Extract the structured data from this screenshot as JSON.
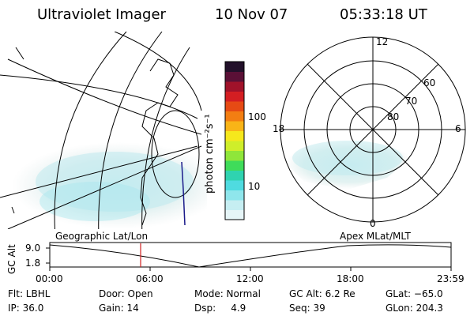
{
  "header": {
    "instrument": "Ultraviolet Imager",
    "date": "10 Nov 07",
    "time": "05:33:18 UT"
  },
  "colorbar": {
    "unit_label": "photon cm⁻²s⁻¹",
    "ticks": [
      "100",
      "10"
    ],
    "colors": [
      "#e6f5f7",
      "#c6eef2",
      "#8fe6ec",
      "#4fdbe0",
      "#2fd3b0",
      "#3fdc5a",
      "#8fe63a",
      "#cfee2a",
      "#f6e81c",
      "#f9b417",
      "#f37e12",
      "#e64a14",
      "#d41e22",
      "#a0122a",
      "#5a1036",
      "#22102a"
    ]
  },
  "polar": {
    "mlt_labels": [
      "12",
      "18",
      "6",
      "0"
    ],
    "lat_labels": [
      "60",
      "70",
      "80"
    ]
  },
  "panels": {
    "left_label": "Geographic Lat/Lon",
    "right_label": "Apex MLat/MLT"
  },
  "altplot": {
    "ylabel": "GC Alt",
    "yticks": [
      "9.0",
      "1.8"
    ],
    "xticks": [
      "00:00",
      "06:00",
      "12:00",
      "18:00",
      "23:59"
    ],
    "marker_color": "#d02020"
  },
  "info": {
    "filter": "Flt: LBHL",
    "door": "Door: Open",
    "mode": "Mode: Normal",
    "gc_alt": "GC Alt: 6.2 Re",
    "glat": "GLat: −65.0",
    "ip": "IP: 36.0",
    "gain": "Gain: 14",
    "dsp": "Dsp:     4.9",
    "seq": "Seq: 39",
    "glon": "GLon: 204.3"
  }
}
